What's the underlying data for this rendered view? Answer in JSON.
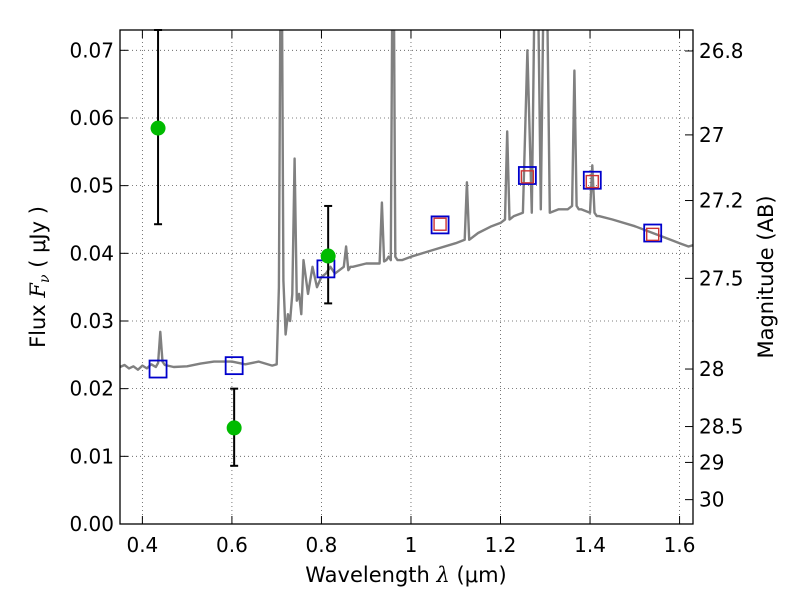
{
  "chart_data": {
    "type": "line",
    "xlabel_prefix": "Wavelength",
    "xlabel_symbol": "λ",
    "xlabel_unit": "(μm)",
    "ylabel_prefix": "Flux",
    "ylabel_symbol": "F",
    "ylabel_subscript": "ν",
    "ylabel_unit": "( μJy )",
    "y2label": "Magnitude (AB)",
    "xlim": [
      0.35,
      1.63
    ],
    "ylim": [
      0.0,
      0.073
    ],
    "grid": true,
    "x_ticks": [
      0.4,
      0.6,
      0.8,
      1.0,
      1.2,
      1.4,
      1.6
    ],
    "x_tick_labels": [
      "0.4",
      "0.6",
      "0.8",
      "1",
      "1.2",
      "1.4",
      "1.6"
    ],
    "y_ticks": [
      0.0,
      0.01,
      0.02,
      0.03,
      0.04,
      0.05,
      0.06,
      0.07
    ],
    "y_tick_labels": [
      "0.00",
      "0.01",
      "0.02",
      "0.03",
      "0.04",
      "0.05",
      "0.06",
      "0.07"
    ],
    "y2_ticks": [
      {
        "label": "26.8",
        "flux": 0.0699
      },
      {
        "label": "27",
        "flux": 0.0575
      },
      {
        "label": "27.2",
        "flux": 0.0478
      },
      {
        "label": "27.5",
        "flux": 0.0363
      },
      {
        "label": "28",
        "flux": 0.0229
      },
      {
        "label": "28.5",
        "flux": 0.0144
      },
      {
        "label": "29",
        "flux": 0.0091
      },
      {
        "label": "30",
        "flux": 0.0036
      }
    ],
    "series": [
      {
        "kind": "model_spectrum",
        "color": "#808080",
        "x": [
          0.35,
          0.36,
          0.37,
          0.38,
          0.39,
          0.4,
          0.41,
          0.42,
          0.43,
          0.435,
          0.44,
          0.445,
          0.45,
          0.47,
          0.5,
          0.53,
          0.56,
          0.6,
          0.63,
          0.66,
          0.69,
          0.7,
          0.705,
          0.71,
          0.715,
          0.72,
          0.725,
          0.73,
          0.735,
          0.74,
          0.745,
          0.75,
          0.755,
          0.76,
          0.77,
          0.78,
          0.79,
          0.8,
          0.81,
          0.82,
          0.83,
          0.84,
          0.85,
          0.855,
          0.86,
          0.865,
          0.87,
          0.9,
          0.93,
          0.935,
          0.94,
          0.945,
          0.95,
          0.955,
          0.96,
          0.965,
          0.97,
          0.98,
          1.0,
          1.05,
          1.1,
          1.12,
          1.125,
          1.13,
          1.15,
          1.18,
          1.2,
          1.21,
          1.215,
          1.22,
          1.23,
          1.25,
          1.26,
          1.27,
          1.28,
          1.29,
          1.3,
          1.31,
          1.33,
          1.35,
          1.36,
          1.365,
          1.37,
          1.375,
          1.38,
          1.4,
          1.405,
          1.41,
          1.415,
          1.42,
          1.45,
          1.5,
          1.54,
          1.56,
          1.58,
          1.6,
          1.62,
          1.63
        ],
        "y": [
          0.0232,
          0.0235,
          0.023,
          0.0233,
          0.0228,
          0.0234,
          0.023,
          0.0236,
          0.0232,
          0.0238,
          0.0284,
          0.024,
          0.0235,
          0.0232,
          0.0233,
          0.0237,
          0.024,
          0.024,
          0.0236,
          0.024,
          0.0234,
          0.0236,
          0.035,
          0.1,
          0.036,
          0.028,
          0.031,
          0.03,
          0.034,
          0.054,
          0.033,
          0.034,
          0.031,
          0.039,
          0.034,
          0.038,
          0.035,
          0.0365,
          0.037,
          0.038,
          0.037,
          0.0375,
          0.038,
          0.041,
          0.0375,
          0.038,
          0.038,
          0.0385,
          0.0385,
          0.0475,
          0.0388,
          0.039,
          0.0395,
          0.039,
          0.1,
          0.0395,
          0.039,
          0.039,
          0.0395,
          0.0405,
          0.0415,
          0.042,
          0.0505,
          0.042,
          0.043,
          0.044,
          0.0445,
          0.045,
          0.058,
          0.045,
          0.0455,
          0.046,
          0.07,
          0.046,
          0.1,
          0.0465,
          0.1,
          0.046,
          0.0465,
          0.0465,
          0.047,
          0.067,
          0.047,
          0.0465,
          0.0465,
          0.046,
          0.053,
          0.046,
          0.0455,
          0.0455,
          0.045,
          0.044,
          0.043,
          0.0425,
          0.042,
          0.0415,
          0.041,
          0.0412
        ]
      },
      {
        "kind": "model_bandpass",
        "marker": "blue-square",
        "color": "#0000cc",
        "x": [
          0.435,
          0.605,
          0.81,
          1.065,
          1.26,
          1.405,
          1.54
        ],
        "y": [
          0.0229,
          0.0234,
          0.0377,
          0.0442,
          0.0515,
          0.0508,
          0.043
        ]
      },
      {
        "kind": "observed_ir",
        "marker": "red-square",
        "color": "#cc3333",
        "x": [
          1.065,
          1.26,
          1.405,
          1.54
        ],
        "y": [
          0.0443,
          0.0513,
          0.0506,
          0.0428
        ]
      },
      {
        "kind": "observed_optical",
        "marker": "green-dot",
        "color": "#00bb00",
        "x": [
          0.435,
          0.605,
          0.815
        ],
        "y": [
          0.0585,
          0.0142,
          0.0396
        ],
        "yerr_low": [
          0.0443,
          0.0086,
          0.0326
        ],
        "yerr_high": [
          0.073,
          0.02,
          0.047
        ]
      }
    ]
  }
}
